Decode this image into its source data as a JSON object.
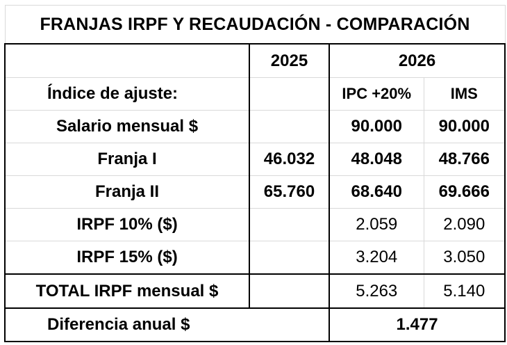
{
  "title": "FRANJAS IRPF Y RECAUDACIÓN - COMPARACIÓN",
  "years": {
    "y2025": "2025",
    "y2026": "2026"
  },
  "adjustment": {
    "label": "Índice de ajuste:",
    "ipc": "IPC +20%",
    "ims": "IMS"
  },
  "rows": [
    {
      "label": "Salario mensual $",
      "v2025": "",
      "ipc": "90.000",
      "ims": "90.000"
    },
    {
      "label": "Franja I",
      "v2025": "46.032",
      "ipc": "48.048",
      "ims": "48.766"
    },
    {
      "label": "Franja II",
      "v2025": "65.760",
      "ipc": "68.640",
      "ims": "69.666"
    },
    {
      "label": "IRPF 10% ($)",
      "v2025": "",
      "ipc": "2.059",
      "ims": "2.090"
    },
    {
      "label": "IRPF 15% ($)",
      "v2025": "",
      "ipc": "3.204",
      "ims": "3.050"
    }
  ],
  "total": {
    "label": "TOTAL IRPF mensual $",
    "ipc": "5.263",
    "ims": "5.140"
  },
  "difference": {
    "label": "Diferencia anual $",
    "value": "1.477"
  }
}
